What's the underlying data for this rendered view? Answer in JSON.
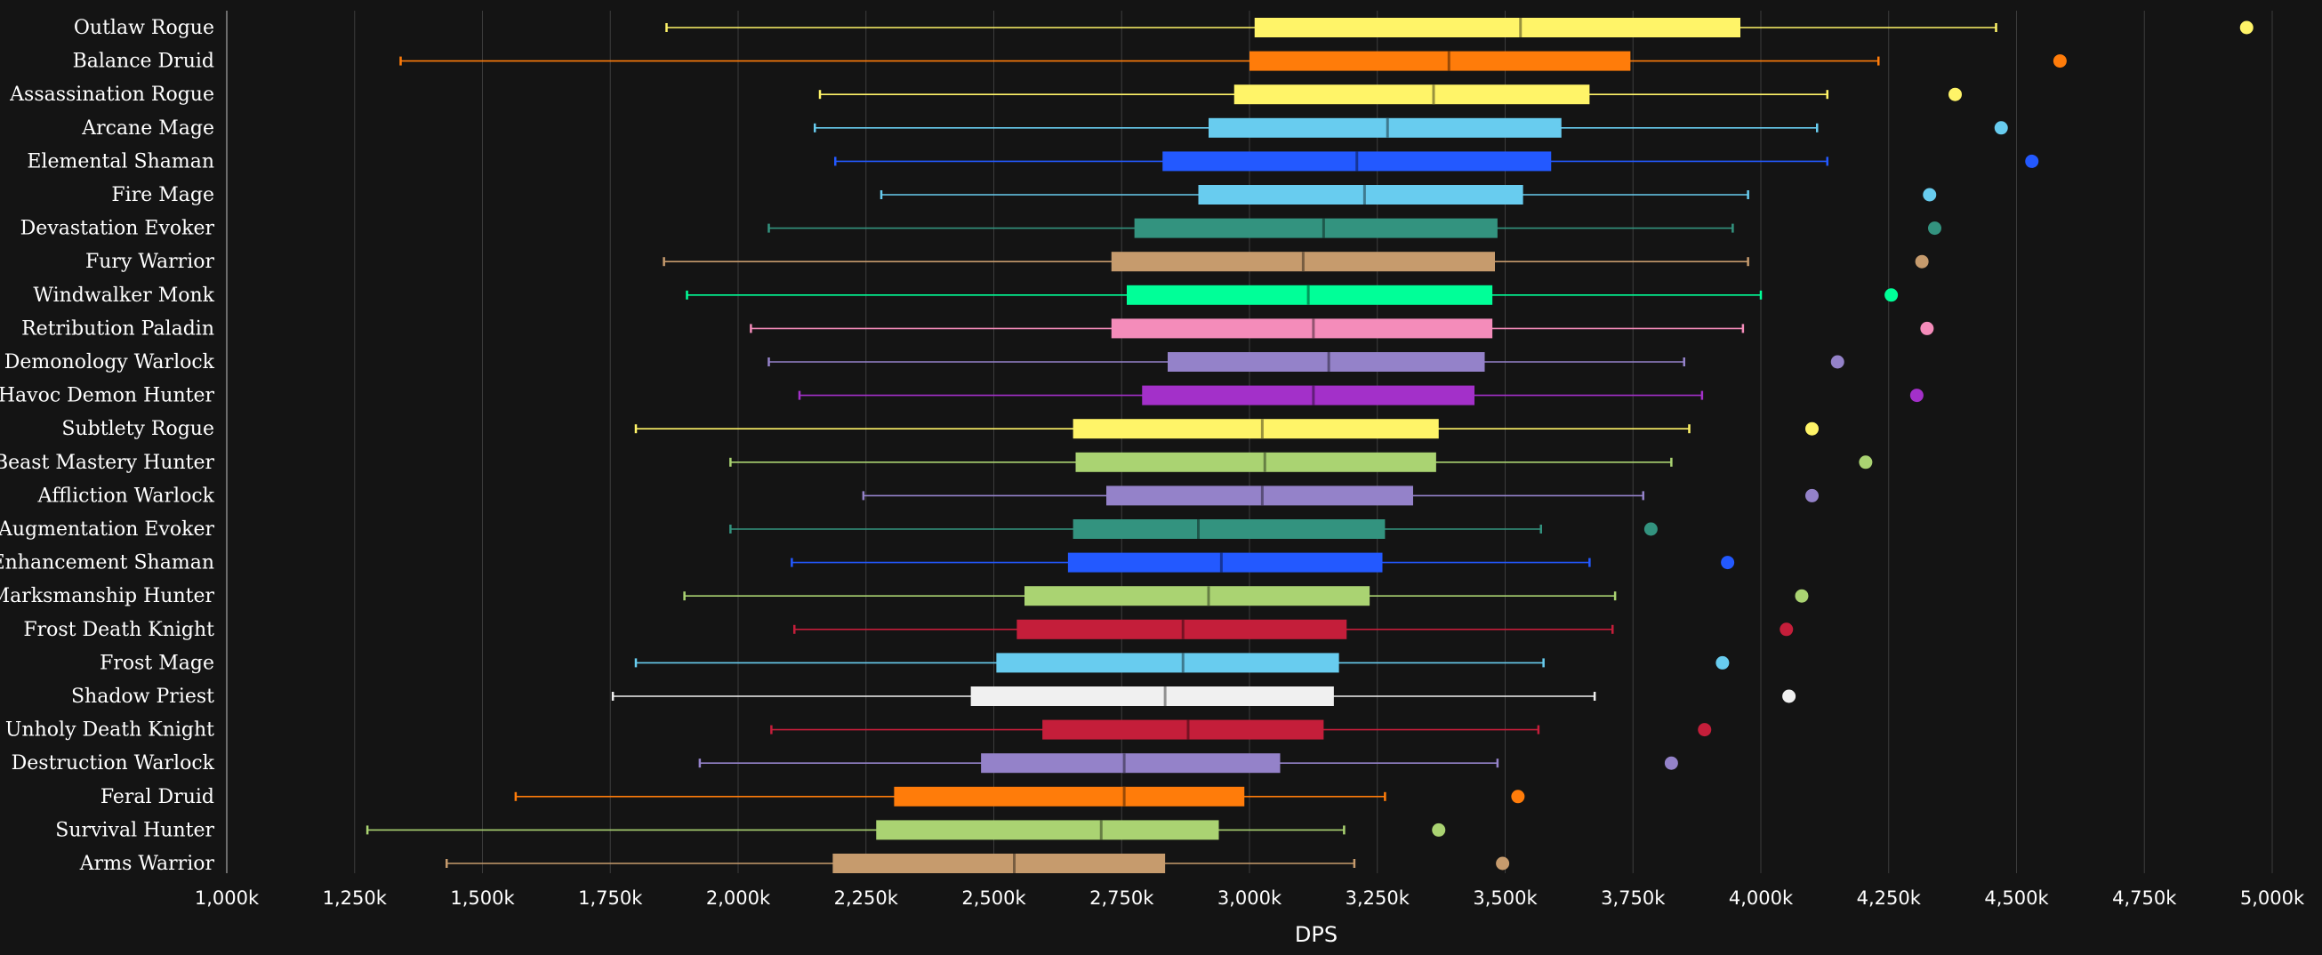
{
  "chart_data": {
    "type": "boxplot",
    "xlabel": "DPS",
    "xlim": [
      1000,
      5000
    ],
    "x_ticks": [
      1000,
      1250,
      1500,
      1750,
      2000,
      2250,
      2500,
      2750,
      3000,
      3250,
      3500,
      3750,
      4000,
      4250,
      4500,
      4750,
      5000
    ],
    "x_tick_labels": [
      "1,000k",
      "1,250k",
      "1,500k",
      "1,750k",
      "2,000k",
      "2,250k",
      "2,500k",
      "2,750k",
      "3,000k",
      "3,250k",
      "3,500k",
      "3,750k",
      "4,000k",
      "4,250k",
      "4,500k",
      "4,750k",
      "5,000k"
    ],
    "grid": true,
    "series": [
      {
        "name": "Outlaw Rogue",
        "color": "#FFF468",
        "min": 1860,
        "q1": 3010,
        "median": 3530,
        "q3": 3960,
        "max": 4460,
        "outlier": 4950
      },
      {
        "name": "Balance Druid",
        "color": "#FF7C0A",
        "min": 1340,
        "q1": 3000,
        "median": 3390,
        "q3": 3745,
        "max": 4230,
        "outlier": 4585
      },
      {
        "name": "Assassination Rogue",
        "color": "#FFF468",
        "min": 2160,
        "q1": 2970,
        "median": 3360,
        "q3": 3665,
        "max": 4130,
        "outlier": 4380
      },
      {
        "name": "Arcane Mage",
        "color": "#68CCEF",
        "min": 2150,
        "q1": 2920,
        "median": 3270,
        "q3": 3610,
        "max": 4110,
        "outlier": 4470
      },
      {
        "name": "Elemental Shaman",
        "color": "#2359FF",
        "min": 2190,
        "q1": 2830,
        "median": 3210,
        "q3": 3590,
        "max": 4130,
        "outlier": 4530
      },
      {
        "name": "Fire Mage",
        "color": "#68CCEF",
        "min": 2280,
        "q1": 2900,
        "median": 3225,
        "q3": 3535,
        "max": 3975,
        "outlier": 4330
      },
      {
        "name": "Devastation Evoker",
        "color": "#33937F",
        "min": 2060,
        "q1": 2775,
        "median": 3145,
        "q3": 3485,
        "max": 3945,
        "outlier": 4340
      },
      {
        "name": "Fury Warrior",
        "color": "#C69B6D",
        "min": 1855,
        "q1": 2730,
        "median": 3105,
        "q3": 3480,
        "max": 3975,
        "outlier": 4315
      },
      {
        "name": "Windwalker Monk",
        "color": "#00FF98",
        "min": 1900,
        "q1": 2760,
        "median": 3115,
        "q3": 3475,
        "max": 4000,
        "outlier": 4255
      },
      {
        "name": "Retribution Paladin",
        "color": "#F48CBA",
        "min": 2025,
        "q1": 2730,
        "median": 3125,
        "q3": 3475,
        "max": 3965,
        "outlier": 4325
      },
      {
        "name": "Demonology Warlock",
        "color": "#9482C9",
        "min": 2060,
        "q1": 2840,
        "median": 3155,
        "q3": 3460,
        "max": 3850,
        "outlier": 4150
      },
      {
        "name": "Havoc Demon Hunter",
        "color": "#A330C9",
        "min": 2120,
        "q1": 2790,
        "median": 3125,
        "q3": 3440,
        "max": 3885,
        "outlier": 4305
      },
      {
        "name": "Subtlety Rogue",
        "color": "#FFF468",
        "min": 1800,
        "q1": 2655,
        "median": 3025,
        "q3": 3370,
        "max": 3860,
        "outlier": 4100
      },
      {
        "name": "Beast Mastery Hunter",
        "color": "#AAD372",
        "min": 1985,
        "q1": 2660,
        "median": 3030,
        "q3": 3365,
        "max": 3825,
        "outlier": 4205
      },
      {
        "name": "Affliction Warlock",
        "color": "#9482C9",
        "min": 2245,
        "q1": 2720,
        "median": 3025,
        "q3": 3320,
        "max": 3770,
        "outlier": 4100
      },
      {
        "name": "Augmentation Evoker",
        "color": "#33937F",
        "min": 1985,
        "q1": 2655,
        "median": 2900,
        "q3": 3265,
        "max": 3570,
        "outlier": 3785
      },
      {
        "name": "Enhancement Shaman",
        "color": "#2359FF",
        "min": 2105,
        "q1": 2645,
        "median": 2945,
        "q3": 3260,
        "max": 3665,
        "outlier": 3935
      },
      {
        "name": "Marksmanship Hunter",
        "color": "#AAD372",
        "min": 1895,
        "q1": 2560,
        "median": 2920,
        "q3": 3235,
        "max": 3715,
        "outlier": 4080
      },
      {
        "name": "Frost Death Knight",
        "color": "#C41E3A",
        "min": 2110,
        "q1": 2545,
        "median": 2870,
        "q3": 3190,
        "max": 3710,
        "outlier": 4050
      },
      {
        "name": "Frost Mage",
        "color": "#68CCEF",
        "min": 1800,
        "q1": 2505,
        "median": 2870,
        "q3": 3175,
        "max": 3575,
        "outlier": 3925
      },
      {
        "name": "Shadow Priest",
        "color": "#F0F0F0",
        "min": 1755,
        "q1": 2455,
        "median": 2835,
        "q3": 3165,
        "max": 3675,
        "outlier": 4055
      },
      {
        "name": "Unholy Death Knight",
        "color": "#C41E3A",
        "min": 2065,
        "q1": 2595,
        "median": 2880,
        "q3": 3145,
        "max": 3565,
        "outlier": 3890
      },
      {
        "name": "Destruction Warlock",
        "color": "#9482C9",
        "min": 1925,
        "q1": 2475,
        "median": 2755,
        "q3": 3060,
        "max": 3485,
        "outlier": 3825
      },
      {
        "name": "Feral Druid",
        "color": "#FF7C0A",
        "min": 1565,
        "q1": 2305,
        "median": 2755,
        "q3": 2990,
        "max": 3265,
        "outlier": 3525
      },
      {
        "name": "Survival Hunter",
        "color": "#AAD372",
        "min": 1275,
        "q1": 2270,
        "median": 2710,
        "q3": 2940,
        "max": 3185,
        "outlier": 3370
      },
      {
        "name": "Arms Warrior",
        "color": "#C69B6D",
        "min": 1430,
        "q1": 2185,
        "median": 2540,
        "q3": 2835,
        "max": 3205,
        "outlier": 3495
      }
    ]
  }
}
